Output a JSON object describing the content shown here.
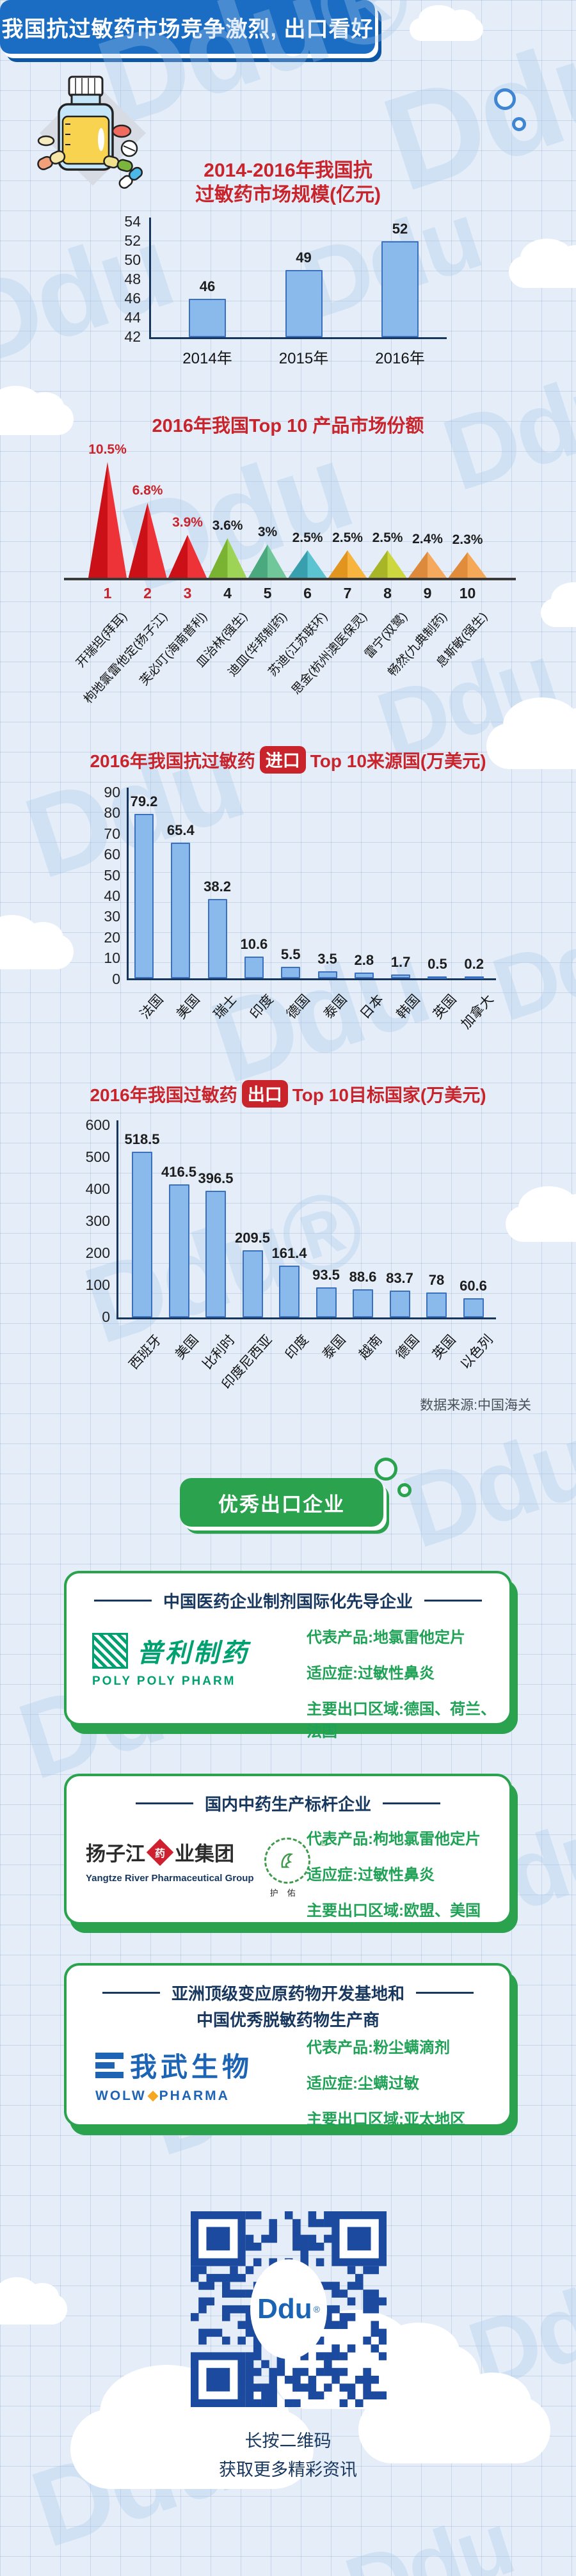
{
  "header": {
    "banner_title": "我国抗过敏药市场竞争激烈, 出口看好"
  },
  "chart_data": [
    {
      "type": "bar",
      "title": "2014-2016年我国抗过敏药市场规模(亿元)",
      "title_lines": [
        "2014-2016年我国抗",
        "过敏药市场规模(亿元)"
      ],
      "categories": [
        "2014年",
        "2015年",
        "2016年"
      ],
      "values": [
        46,
        49,
        52
      ],
      "ylim": [
        42,
        54
      ],
      "yticks": [
        54,
        52,
        50,
        48,
        46,
        44,
        42
      ],
      "grid": false,
      "legend": "none"
    },
    {
      "type": "bar",
      "subtype": "triangle-peaks",
      "title": "2016年我国Top 10 产品市场份额",
      "ranks": [
        "1",
        "2",
        "3",
        "4",
        "5",
        "6",
        "7",
        "8",
        "9",
        "10"
      ],
      "categories": [
        "开瑞坦(拜耳)",
        "枸地氯雷他定(扬子江)",
        "芙必叮(海南普利)",
        "皿治林(强生)",
        "迪皿(华邦制药)",
        "苏迪(江苏联环)",
        "思金(杭州澳医保灵)",
        "雷宁(双鹭)",
        "畅然(九典制药)",
        "息斯敏(强生)"
      ],
      "values": [
        10.5,
        6.8,
        3.9,
        3.6,
        3,
        2.5,
        2.5,
        2.5,
        2.4,
        2.3
      ],
      "value_labels": [
        "10.5%",
        "6.8%",
        "3.9%",
        "3.6%",
        "3%",
        "2.5%",
        "2.5%",
        "2.5%",
        "2.4%",
        "2.3%"
      ],
      "highlight_top3_color": "#c9242b",
      "triangle_colors": [
        [
          "#cc1017",
          "#ee3338"
        ],
        [
          "#cc1017",
          "#ee3338"
        ],
        [
          "#cc1017",
          "#ee3338"
        ],
        [
          "#7ab332",
          "#9ed455"
        ],
        [
          "#4aa97e",
          "#6fc79a"
        ],
        [
          "#379fae",
          "#5bc4d0"
        ],
        [
          "#e1951f",
          "#f7b53f"
        ],
        [
          "#a8b527",
          "#ccd83e"
        ],
        [
          "#dd8a3d",
          "#f4a95c"
        ],
        [
          "#e08c3a",
          "#f5a958"
        ]
      ]
    },
    {
      "type": "bar",
      "title": "2016年我国抗过敏药进口Top 10来源国(万美元)",
      "title_parts": {
        "pre": "2016年我国抗过敏药",
        "badge": "进口",
        "post": "Top 10来源国(万美元)"
      },
      "categories": [
        "法国",
        "美国",
        "瑞士",
        "印度",
        "德国",
        "泰国",
        "日本",
        "韩国",
        "英国",
        "加拿大"
      ],
      "values": [
        79.2,
        65.4,
        38.2,
        10.6,
        5.5,
        3.5,
        2.8,
        1.7,
        0.5,
        0.2
      ],
      "ylim": [
        0,
        90
      ],
      "yticks": [
        90,
        80,
        70,
        60,
        50,
        40,
        30,
        20,
        10,
        0
      ],
      "grid": false,
      "legend": "none"
    },
    {
      "type": "bar",
      "title": "2016年我国过敏药出口Top 10目标国家(万美元)",
      "title_parts": {
        "pre": "2016年我国过敏药",
        "badge": "出口",
        "post": "Top 10目标国家(万美元)"
      },
      "categories": [
        "西班牙",
        "美国",
        "比利时",
        "印度尼西亚",
        "印度",
        "泰国",
        "越南",
        "德国",
        "英国",
        "以色列"
      ],
      "values": [
        518.5,
        416.5,
        396.5,
        209.5,
        161.4,
        93.5,
        88.6,
        83.7,
        78,
        60.6
      ],
      "ylim": [
        0,
        600
      ],
      "yticks": [
        600,
        500,
        400,
        300,
        200,
        100,
        0
      ],
      "grid": false,
      "legend": "none"
    }
  ],
  "source_note": "数据来源:中国海关",
  "section_badge": "优秀出口企业",
  "companies": [
    {
      "title_lines": [
        "中国医药企业制剂国际化先导企业"
      ],
      "logo": {
        "cn": "普利制药",
        "en": "POLY   POLY PHARM"
      },
      "details": [
        "代表产品:地氯雷他定片",
        "适应症:过敏性鼻炎",
        "主要出口区域:德国、荷兰、法国"
      ]
    },
    {
      "title_lines": [
        "国内中药生产标杆企业"
      ],
      "logo": {
        "cn_pre": "扬子江",
        "cn_diamond": "药",
        "cn_post": "业集团",
        "en": "Yangtze River Pharmaceutical Group",
        "emblem_mark": "®",
        "emblem_label": "护佑"
      },
      "details": [
        "代表产品:枸地氯雷他定片",
        "适应症:过敏性鼻炎",
        "主要出口区域:欧盟、美国"
      ]
    },
    {
      "title_lines": [
        "亚洲顶级变应原药物开发基地和",
        "中国优秀脱敏药物生产商"
      ],
      "logo": {
        "cn": "我武生物",
        "en_pre": "WOLW",
        "en_post": "PHARMA"
      },
      "details": [
        "代表产品:粉尘螨滴剂",
        "适应症:尘螨过敏",
        "主要出口区域:亚太地区"
      ]
    }
  ],
  "qr": {
    "center_logo": "Ddu",
    "center_mark": "®"
  },
  "footer": {
    "line1": "长按二维码",
    "line2": "获取更多精彩资讯"
  },
  "watermark_text": "Ddu",
  "colors": {
    "banner_blue": "#1a6dc2",
    "title_red": "#c9242b",
    "bar_fill": "#8ab9ec",
    "bar_border": "#3b70bf",
    "axis_navy": "#17365e",
    "brand_green": "#2ba24e",
    "detail_green": "#1fa156",
    "card_title_navy": "#17375e",
    "qr_blue": "#1c4a9e"
  }
}
